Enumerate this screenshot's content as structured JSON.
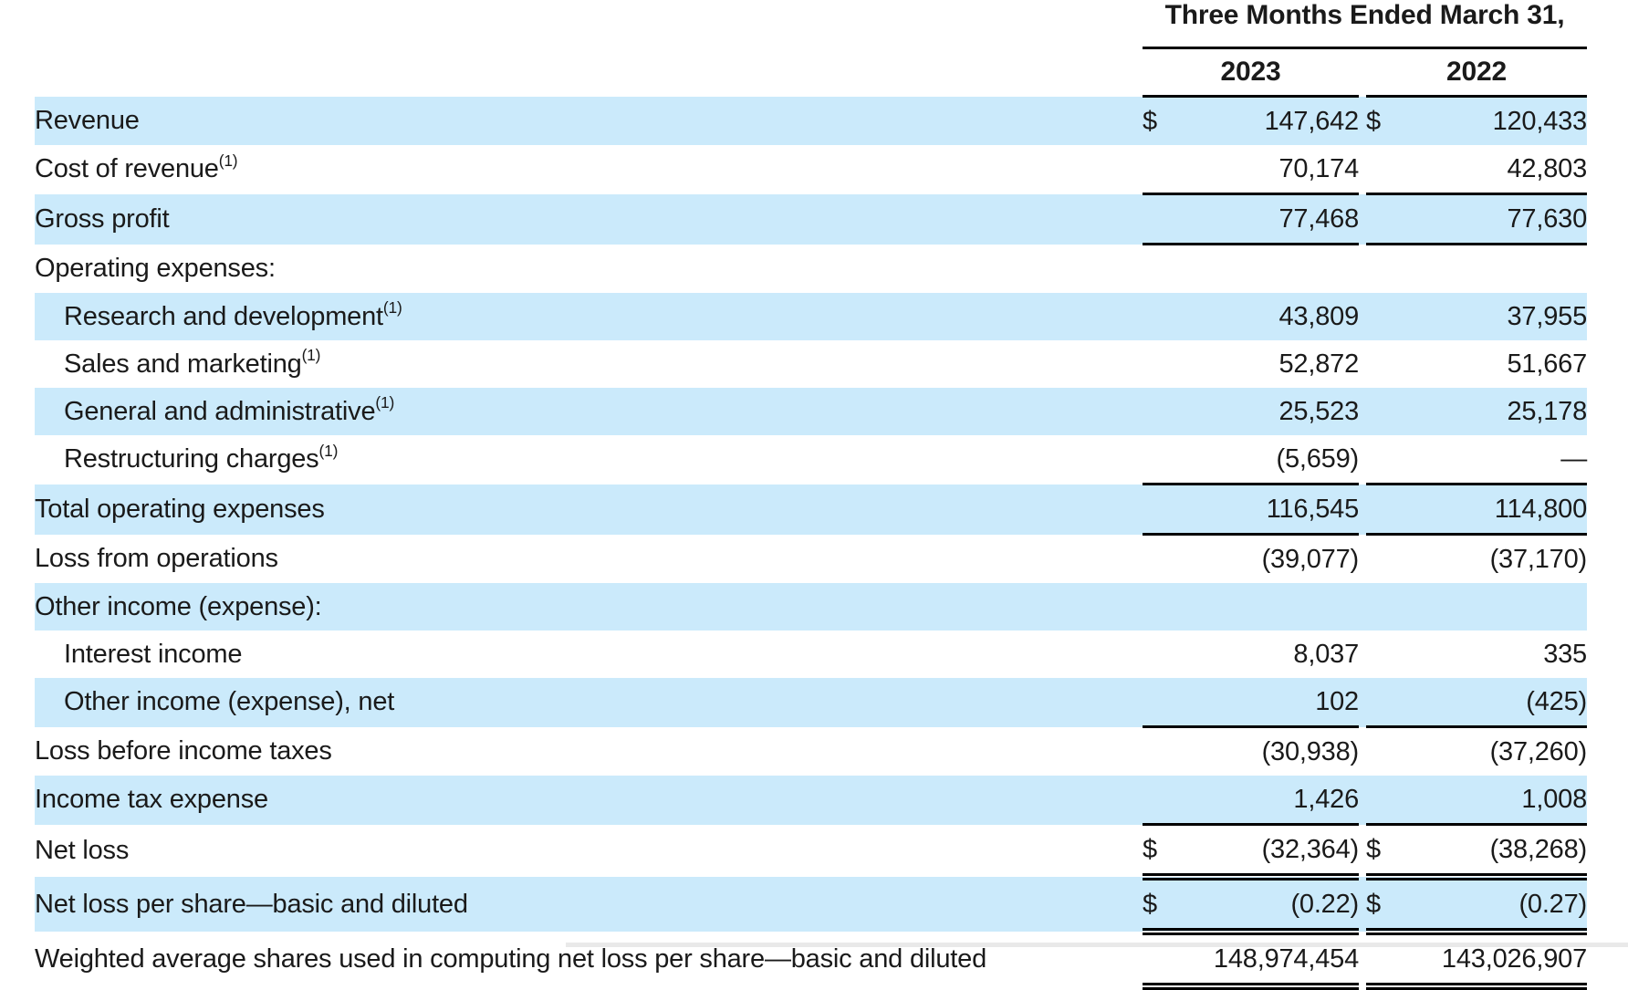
{
  "header": {
    "title": "Three Months Ended March 31,",
    "col_2023": "2023",
    "col_2022": "2022"
  },
  "colors": {
    "row_highlight": "#cbeafb",
    "text": "#1a1a1a",
    "border": "#000000",
    "background": "#ffffff"
  },
  "table": {
    "columns": [
      "label",
      "2023",
      "2022"
    ],
    "rows": [
      {
        "label": "Revenue",
        "sup": "",
        "indent": false,
        "shaded": true,
        "cur_2023": "$",
        "val_2023": "147,642",
        "cur_2022": "$",
        "val_2022": "120,433",
        "border": "none"
      },
      {
        "label": "Cost of revenue",
        "sup": "(1)",
        "indent": false,
        "shaded": false,
        "cur_2023": "",
        "val_2023": "70,174",
        "cur_2022": "",
        "val_2022": "42,803",
        "border": "single"
      },
      {
        "label": "Gross profit",
        "sup": "",
        "indent": false,
        "shaded": true,
        "cur_2023": "",
        "val_2023": "77,468",
        "cur_2022": "",
        "val_2022": "77,630",
        "border": "single"
      },
      {
        "label": "Operating expenses:",
        "sup": "",
        "indent": false,
        "shaded": false,
        "cur_2023": "",
        "val_2023": "",
        "cur_2022": "",
        "val_2022": "",
        "border": "none"
      },
      {
        "label": "Research and development",
        "sup": "(1)",
        "indent": true,
        "shaded": true,
        "cur_2023": "",
        "val_2023": "43,809",
        "cur_2022": "",
        "val_2022": "37,955",
        "border": "none"
      },
      {
        "label": "Sales and marketing",
        "sup": "(1)",
        "indent": true,
        "shaded": false,
        "cur_2023": "",
        "val_2023": "52,872",
        "cur_2022": "",
        "val_2022": "51,667",
        "border": "none"
      },
      {
        "label": "General and administrative",
        "sup": "(1)",
        "indent": true,
        "shaded": true,
        "cur_2023": "",
        "val_2023": "25,523",
        "cur_2022": "",
        "val_2022": "25,178",
        "border": "none"
      },
      {
        "label": "Restructuring charges",
        "sup": "(1)",
        "indent": true,
        "shaded": false,
        "cur_2023": "",
        "val_2023": "(5,659)",
        "cur_2022": "",
        "val_2022": "—",
        "border": "single"
      },
      {
        "label": "Total operating expenses",
        "sup": "",
        "indent": false,
        "shaded": true,
        "cur_2023": "",
        "val_2023": "116,545",
        "cur_2022": "",
        "val_2022": "114,800",
        "border": "single"
      },
      {
        "label": "Loss from operations",
        "sup": "",
        "indent": false,
        "shaded": false,
        "cur_2023": "",
        "val_2023": "(39,077)",
        "cur_2022": "",
        "val_2022": "(37,170)",
        "border": "none"
      },
      {
        "label": "Other income (expense):",
        "sup": "",
        "indent": false,
        "shaded": true,
        "cur_2023": "",
        "val_2023": "",
        "cur_2022": "",
        "val_2022": "",
        "border": "none"
      },
      {
        "label": "Interest income",
        "sup": "",
        "indent": true,
        "shaded": false,
        "cur_2023": "",
        "val_2023": "8,037",
        "cur_2022": "",
        "val_2022": "335",
        "border": "none"
      },
      {
        "label": "Other income (expense), net",
        "sup": "",
        "indent": true,
        "shaded": true,
        "cur_2023": "",
        "val_2023": "102",
        "cur_2022": "",
        "val_2022": "(425)",
        "border": "single"
      },
      {
        "label": "Loss before income taxes",
        "sup": "",
        "indent": false,
        "shaded": false,
        "cur_2023": "",
        "val_2023": "(30,938)",
        "cur_2022": "",
        "val_2022": "(37,260)",
        "border": "none"
      },
      {
        "label": "Income tax expense",
        "sup": "",
        "indent": false,
        "shaded": true,
        "cur_2023": "",
        "val_2023": "1,426",
        "cur_2022": "",
        "val_2022": "1,008",
        "border": "single"
      },
      {
        "label": "Net loss",
        "sup": "",
        "indent": false,
        "shaded": false,
        "cur_2023": "$",
        "val_2023": "(32,364)",
        "cur_2022": "$",
        "val_2022": "(38,268)",
        "border": "double"
      },
      {
        "label": "Net loss per share—basic and diluted",
        "sup": "",
        "indent": false,
        "shaded": true,
        "cur_2023": "$",
        "val_2023": "(0.22)",
        "cur_2022": "$",
        "val_2022": "(0.27)",
        "border": "double"
      },
      {
        "label": "Weighted average shares used in computing net loss per share—basic and diluted",
        "sup": "",
        "indent": false,
        "shaded": false,
        "cur_2023": "",
        "val_2023": "148,974,454",
        "cur_2022": "",
        "val_2022": "143,026,907",
        "border": "double"
      }
    ]
  }
}
